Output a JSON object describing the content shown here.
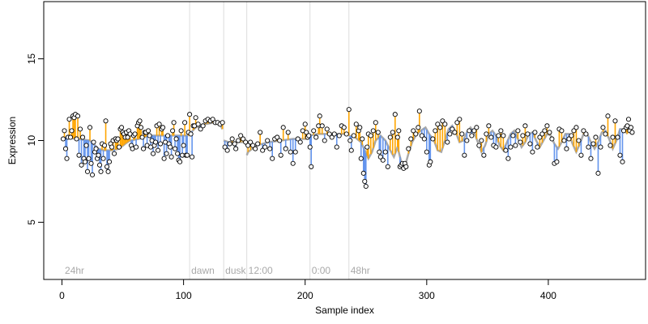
{
  "chart_data": {
    "type": "scatter",
    "title": "",
    "xlabel": "Sample index",
    "ylabel": "Expression",
    "xlim": [
      -15,
      480
    ],
    "ylim": [
      1.5,
      18.5
    ],
    "xticks": [
      0,
      100,
      200,
      300,
      400
    ],
    "yticks": [
      5,
      10,
      15
    ],
    "grid": false,
    "legend": "none",
    "colors": {
      "fitted_line": "#a9a9a9",
      "residual_above": "#ffa500",
      "residual_below": "#6495ed",
      "point_stroke": "#000000",
      "point_fill": "#ffffff",
      "annotation_line": "#dcdcdc",
      "annotation_text": "#a9a9a9"
    },
    "annotations": [
      {
        "x": 1,
        "label": "24hr",
        "line": false
      },
      {
        "x": 105,
        "label": "dawn",
        "line": true
      },
      {
        "x": 133,
        "label": "dusk",
        "line": true
      },
      {
        "x": 152,
        "label": "12:00",
        "line": true
      },
      {
        "x": 204,
        "label": "0:00",
        "line": true
      },
      {
        "x": 236,
        "label": "48hr",
        "line": true
      }
    ],
    "fitted_segments": [
      {
        "x": [
          1,
          23,
          30,
          34,
          41,
          47,
          52,
          56,
          63,
          72,
          78,
          82,
          87,
          92,
          104
        ],
        "y": [
          10.2,
          10.0,
          9.5,
          9.4,
          9.4,
          9.5,
          9.8,
          10.0,
          10.1,
          10.3,
          10.3,
          10.3,
          10.3,
          10.3,
          10.3
        ]
      },
      {
        "x": [
          105,
          110,
          118,
          125,
          130,
          132
        ],
        "y": [
          10.4,
          10.8,
          11.0,
          11.1,
          11.0,
          10.7
        ]
      },
      {
        "x": [
          133,
          137,
          143,
          150
        ],
        "y": [
          10.0,
          9.9,
          9.9,
          9.9
        ]
      },
      {
        "x": [
          152,
          153,
          160,
          170,
          180,
          190,
          200,
          203
        ],
        "y": [
          9.1,
          9.3,
          9.7,
          9.9,
          10.0,
          10.1,
          10.1,
          10.1
        ]
      },
      {
        "x": [
          204,
          210,
          220,
          230,
          235
        ],
        "y": [
          10.3,
          10.4,
          10.4,
          10.4,
          10.4
        ]
      },
      {
        "x": [
          236,
          241,
          246,
          249,
          252,
          255,
          258,
          262,
          266,
          270,
          273,
          276,
          279,
          282,
          285,
          288,
          291,
          295,
          299,
          302,
          306,
          309,
          312,
          315,
          318,
          321,
          324,
          327,
          330,
          333,
          336,
          339,
          342,
          345,
          348,
          351,
          354,
          357,
          360,
          363,
          366,
          369,
          372,
          375,
          378,
          381,
          384,
          387,
          390,
          393,
          396,
          399,
          402,
          405,
          408,
          411,
          414,
          417,
          420,
          423,
          426,
          429,
          432,
          435,
          438,
          441,
          444,
          447,
          450,
          453,
          456,
          459,
          462,
          465
        ],
        "y": [
          10.3,
          10.2,
          9.9,
          9.4,
          8.9,
          9.3,
          10.0,
          10.3,
          10.0,
          9.4,
          9.0,
          9.6,
          8.7,
          8.4,
          9.2,
          9.9,
          10.3,
          10.6,
          10.8,
          10.4,
          10.0,
          9.4,
          9.3,
          10.0,
          10.7,
          10.9,
          10.5,
          9.9,
          10.0,
          10.5,
          10.8,
          10.5,
          9.9,
          9.3,
          9.7,
          10.4,
          10.6,
          10.3,
          9.7,
          9.4,
          9.9,
          10.4,
          10.6,
          10.1,
          9.6,
          9.9,
          10.4,
          10.5,
          10.0,
          9.6,
          10.0,
          10.4,
          10.3,
          9.8,
          9.5,
          9.9,
          10.4,
          10.4,
          9.8,
          9.3,
          9.8,
          10.4,
          10.4,
          9.9,
          9.5,
          9.9,
          10.5,
          10.6,
          10.1,
          9.5,
          10.0,
          10.7,
          10.7,
          10.4
        ]
      }
    ],
    "points": [
      [
        1,
        10.1
      ],
      [
        2,
        10.6
      ],
      [
        3,
        9.5
      ],
      [
        4,
        8.9
      ],
      [
        5,
        10.2
      ],
      [
        6,
        11.3
      ],
      [
        7,
        10.2
      ],
      [
        8,
        10.6
      ],
      [
        9,
        11.5
      ],
      [
        10,
        11.4
      ],
      [
        11,
        11.6
      ],
      [
        12,
        10.1
      ],
      [
        13,
        11.5
      ],
      [
        14,
        9.1
      ],
      [
        15,
        10.7
      ],
      [
        16,
        8.5
      ],
      [
        17,
        10.2
      ],
      [
        18,
        8.9
      ],
      [
        19,
        8.7
      ],
      [
        20,
        9.7
      ],
      [
        21,
        8.1
      ],
      [
        22,
        8.9
      ],
      [
        23,
        10.8
      ],
      [
        24,
        8.6
      ],
      [
        25,
        7.9
      ],
      [
        26,
        9.9
      ],
      [
        27,
        9.3
      ],
      [
        28,
        9.5
      ],
      [
        29,
        8.9
      ],
      [
        30,
        9.1
      ],
      [
        31,
        8.5
      ],
      [
        32,
        8.1
      ],
      [
        33,
        9.8
      ],
      [
        34,
        8.9
      ],
      [
        35,
        9.7
      ],
      [
        36,
        11.2
      ],
      [
        37,
        8.4
      ],
      [
        38,
        8.1
      ],
      [
        39,
        8.7
      ],
      [
        40,
        9.8
      ],
      [
        41,
        9.6
      ],
      [
        42,
        10.0
      ],
      [
        43,
        9.2
      ],
      [
        44,
        10.1
      ],
      [
        45,
        10.0
      ],
      [
        46,
        10.1
      ],
      [
        47,
        9.6
      ],
      [
        48,
        10.7
      ],
      [
        49,
        10.8
      ],
      [
        50,
        10.5
      ],
      [
        51,
        10.4
      ],
      [
        52,
        10.2
      ],
      [
        53,
        10.5
      ],
      [
        54,
        10.2
      ],
      [
        55,
        10.6
      ],
      [
        56,
        10.4
      ],
      [
        57,
        9.7
      ],
      [
        58,
        9.5
      ],
      [
        59,
        10.3
      ],
      [
        60,
        10.4
      ],
      [
        61,
        9.6
      ],
      [
        62,
        10.9
      ],
      [
        63,
        11.1
      ],
      [
        64,
        11.2
      ],
      [
        65,
        10.8
      ],
      [
        66,
        10.2
      ],
      [
        67,
        9.5
      ],
      [
        68,
        10.5
      ],
      [
        69,
        10.5
      ],
      [
        70,
        9.7
      ],
      [
        71,
        10.6
      ],
      [
        72,
        10.3
      ],
      [
        73,
        9.6
      ],
      [
        74,
        10.0
      ],
      [
        75,
        9.2
      ],
      [
        76,
        9.7
      ],
      [
        77,
        9.9
      ],
      [
        78,
        10.9
      ],
      [
        79,
        9.4
      ],
      [
        80,
        11.0
      ],
      [
        81,
        9.8
      ],
      [
        82,
        10.7
      ],
      [
        83,
        10.8
      ],
      [
        84,
        8.9
      ],
      [
        85,
        9.9
      ],
      [
        86,
        9.2
      ],
      [
        87,
        10.3
      ],
      [
        88,
        9.8
      ],
      [
        89,
        9.6
      ],
      [
        90,
        9.0
      ],
      [
        91,
        10.6
      ],
      [
        92,
        11.1
      ],
      [
        93,
        9.5
      ],
      [
        94,
        10.1
      ],
      [
        95,
        9.2
      ],
      [
        96,
        8.8
      ],
      [
        97,
        8.7
      ],
      [
        98,
        10.6
      ],
      [
        99,
        9.1
      ],
      [
        100,
        9.7
      ],
      [
        101,
        11.1
      ],
      [
        102,
        9.1
      ],
      [
        103,
        9.1
      ],
      [
        104,
        10.5
      ],
      [
        105,
        11.6
      ],
      [
        106,
        10.4
      ],
      [
        107,
        9.0
      ],
      [
        108,
        10.9
      ],
      [
        109,
        10.9
      ],
      [
        110,
        11.4
      ],
      [
        112,
        11.0
      ],
      [
        114,
        10.7
      ],
      [
        116,
        10.9
      ],
      [
        118,
        11.2
      ],
      [
        120,
        11.3
      ],
      [
        122,
        11.2
      ],
      [
        124,
        11.3
      ],
      [
        126,
        11.1
      ],
      [
        128,
        11.1
      ],
      [
        130,
        11.0
      ],
      [
        132,
        11.1
      ],
      [
        134,
        9.6
      ],
      [
        136,
        9.4
      ],
      [
        138,
        9.8
      ],
      [
        140,
        10.1
      ],
      [
        142,
        9.8
      ],
      [
        143,
        9.5
      ],
      [
        145,
        10.0
      ],
      [
        147,
        10.3
      ],
      [
        149,
        10.1
      ],
      [
        151,
        9.9
      ],
      [
        153,
        9.7
      ],
      [
        155,
        9.9
      ],
      [
        157,
        9.7
      ],
      [
        159,
        9.5
      ],
      [
        161,
        9.8
      ],
      [
        163,
        10.5
      ],
      [
        165,
        9.4
      ],
      [
        167,
        9.6
      ],
      [
        169,
        10.0
      ],
      [
        171,
        9.5
      ],
      [
        173,
        8.9
      ],
      [
        175,
        10.1
      ],
      [
        177,
        10.2
      ],
      [
        179,
        10.0
      ],
      [
        180,
        9.1
      ],
      [
        182,
        10.8
      ],
      [
        184,
        9.5
      ],
      [
        186,
        10.5
      ],
      [
        188,
        9.3
      ],
      [
        190,
        8.6
      ],
      [
        192,
        9.3
      ],
      [
        194,
        10.1
      ],
      [
        196,
        9.9
      ],
      [
        198,
        10.6
      ],
      [
        200,
        11.0
      ],
      [
        201,
        10.5
      ],
      [
        202,
        10.2
      ],
      [
        203,
        10.3
      ],
      [
        204,
        9.6
      ],
      [
        205,
        8.4
      ],
      [
        207,
        10.6
      ],
      [
        209,
        10.2
      ],
      [
        211,
        10.9
      ],
      [
        212,
        11.5
      ],
      [
        214,
        10.9
      ],
      [
        216,
        10.0
      ],
      [
        218,
        10.7
      ],
      [
        220,
        10.4
      ],
      [
        222,
        10.2
      ],
      [
        224,
        10.4
      ],
      [
        226,
        9.6
      ],
      [
        228,
        10.3
      ],
      [
        230,
        10.9
      ],
      [
        232,
        10.8
      ],
      [
        234,
        10.4
      ],
      [
        236,
        11.9
      ],
      [
        237,
        10.0
      ],
      [
        238,
        9.4
      ],
      [
        240,
        10.3
      ],
      [
        242,
        11.0
      ],
      [
        244,
        10.6
      ],
      [
        245,
        10.8
      ],
      [
        246,
        8.9
      ],
      [
        247,
        10.1
      ],
      [
        248,
        8.0
      ],
      [
        249,
        7.5
      ],
      [
        250,
        7.2
      ],
      [
        251,
        9.6
      ],
      [
        252,
        10.4
      ],
      [
        254,
        10.3
      ],
      [
        256,
        10.6
      ],
      [
        258,
        11.1
      ],
      [
        260,
        10.5
      ],
      [
        261,
        9.3
      ],
      [
        262,
        9.0
      ],
      [
        264,
        8.8
      ],
      [
        266,
        9.3
      ],
      [
        268,
        8.4
      ],
      [
        270,
        10.2
      ],
      [
        272,
        10.5
      ],
      [
        274,
        11.6
      ],
      [
        276,
        10.2
      ],
      [
        277,
        10.6
      ],
      [
        278,
        8.4
      ],
      [
        279,
        8.5
      ],
      [
        280,
        8.6
      ],
      [
        281,
        8.3
      ],
      [
        282,
        8.6
      ],
      [
        283,
        8.4
      ],
      [
        285,
        9.5
      ],
      [
        287,
        10.1
      ],
      [
        289,
        10.6
      ],
      [
        291,
        10.4
      ],
      [
        293,
        10.8
      ],
      [
        294,
        11.8
      ],
      [
        296,
        10.3
      ],
      [
        298,
        10.1
      ],
      [
        300,
        9.3
      ],
      [
        302,
        8.5
      ],
      [
        303,
        8.7
      ],
      [
        305,
        10.1
      ],
      [
        307,
        10.6
      ],
      [
        309,
        11.0
      ],
      [
        311,
        10.8
      ],
      [
        313,
        11.2
      ],
      [
        315,
        11.0
      ],
      [
        317,
        9.9
      ],
      [
        319,
        10.4
      ],
      [
        321,
        10.7
      ],
      [
        323,
        10.5
      ],
      [
        325,
        11.1
      ],
      [
        327,
        11.3
      ],
      [
        329,
        10.4
      ],
      [
        331,
        9.1
      ],
      [
        333,
        10.0
      ],
      [
        335,
        10.6
      ],
      [
        337,
        10.3
      ],
      [
        339,
        10.6
      ],
      [
        341,
        10.8
      ],
      [
        343,
        9.7
      ],
      [
        345,
        10.0
      ],
      [
        347,
        9.1
      ],
      [
        349,
        10.4
      ],
      [
        351,
        10.9
      ],
      [
        353,
        10.2
      ],
      [
        355,
        9.7
      ],
      [
        357,
        9.6
      ],
      [
        359,
        10.3
      ],
      [
        361,
        10.6
      ],
      [
        363,
        10.3
      ],
      [
        365,
        9.4
      ],
      [
        367,
        8.9
      ],
      [
        369,
        9.6
      ],
      [
        371,
        10.3
      ],
      [
        373,
        9.7
      ],
      [
        375,
        10.6
      ],
      [
        377,
        9.9
      ],
      [
        379,
        10.3
      ],
      [
        381,
        10.9
      ],
      [
        383,
        10.4
      ],
      [
        385,
        9.8
      ],
      [
        387,
        9.3
      ],
      [
        389,
        10.5
      ],
      [
        391,
        9.6
      ],
      [
        393,
        10.2
      ],
      [
        395,
        10.4
      ],
      [
        397,
        10.6
      ],
      [
        399,
        10.9
      ],
      [
        401,
        10.5
      ],
      [
        403,
        10.1
      ],
      [
        405,
        8.6
      ],
      [
        407,
        8.7
      ],
      [
        409,
        10.7
      ],
      [
        411,
        10.6
      ],
      [
        413,
        10.0
      ],
      [
        415,
        9.5
      ],
      [
        417,
        10.1
      ],
      [
        419,
        10.3
      ],
      [
        421,
        10.6
      ],
      [
        423,
        10.8
      ],
      [
        425,
        10.0
      ],
      [
        427,
        9.1
      ],
      [
        429,
        10.6
      ],
      [
        431,
        10.4
      ],
      [
        433,
        9.6
      ],
      [
        435,
        8.9
      ],
      [
        437,
        9.8
      ],
      [
        439,
        10.2
      ],
      [
        441,
        8.0
      ],
      [
        443,
        9.6
      ],
      [
        445,
        10.8
      ],
      [
        447,
        10.4
      ],
      [
        449,
        11.5
      ],
      [
        451,
        9.7
      ],
      [
        453,
        10.2
      ],
      [
        455,
        11.2
      ],
      [
        457,
        10.2
      ],
      [
        459,
        9.1
      ],
      [
        461,
        8.7
      ],
      [
        462,
        10.6
      ],
      [
        464,
        10.8
      ],
      [
        465,
        10.9
      ],
      [
        466,
        11.3
      ],
      [
        467,
        10.6
      ],
      [
        468,
        10.8
      ],
      [
        469,
        10.5
      ]
    ]
  }
}
